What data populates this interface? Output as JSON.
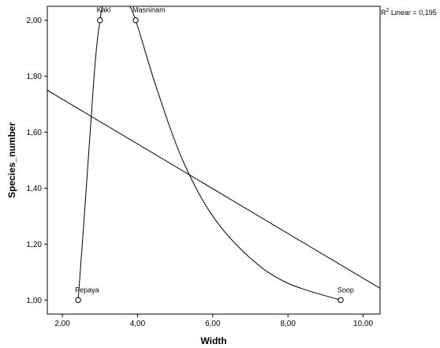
{
  "chart_data": {
    "type": "scatter",
    "xlabel": "Width",
    "ylabel": "Species_number",
    "xlim": [
      1.6,
      10.45
    ],
    "ylim": [
      0.95,
      2.05
    ],
    "x_ticks": [
      2,
      4,
      6,
      8,
      10
    ],
    "x_tick_labels": [
      "2,00",
      "4,00",
      "6,00",
      "8,00",
      "10,00"
    ],
    "y_ticks": [
      1.0,
      1.2,
      1.4,
      1.6,
      1.8,
      2.0
    ],
    "y_tick_labels": [
      "1,00",
      "1,20",
      "1,40",
      "1,60",
      "1,80",
      "2,00"
    ],
    "grid": false,
    "points": [
      {
        "label": "Pepaya",
        "x": 2.42,
        "y": 1.0
      },
      {
        "label": "Kaki",
        "x": 3.0,
        "y": 2.0
      },
      {
        "label": "Masninam",
        "x": 3.95,
        "y": 2.0
      },
      {
        "label": "Soop",
        "x": 9.4,
        "y": 1.0
      }
    ],
    "smooth_curve": [
      [
        2.42,
        1.0
      ],
      [
        2.6,
        1.33
      ],
      [
        2.75,
        1.62
      ],
      [
        2.88,
        1.86
      ],
      [
        3.0,
        2.0
      ],
      [
        3.1,
        2.06
      ],
      [
        3.4,
        2.12
      ],
      [
        3.7,
        2.07
      ],
      [
        3.95,
        2.0
      ],
      [
        4.5,
        1.76
      ],
      [
        5.2,
        1.5
      ],
      [
        6.0,
        1.3
      ],
      [
        7.0,
        1.15
      ],
      [
        8.0,
        1.06
      ],
      [
        9.4,
        1.0
      ]
    ],
    "linear_fit": {
      "label_prefix": "R",
      "label_sup": "2",
      "label_suffix": " Linear = 0,195",
      "x": [
        1.6,
        10.45
      ],
      "y": [
        1.75,
        1.042
      ]
    }
  }
}
